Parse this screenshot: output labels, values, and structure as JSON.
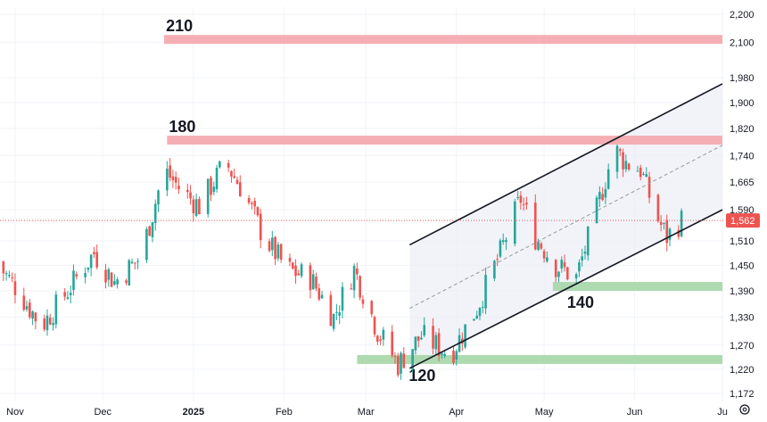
{
  "chart_data": {
    "type": "candlestick",
    "price_axis": {
      "ticks": [
        2200,
        2100,
        1980,
        1900,
        1820,
        1740,
        1665,
        1590,
        1510,
        1450,
        1390,
        1330,
        1270,
        1220,
        1172
      ],
      "tick_labels": [
        "2,200",
        "2,100",
        "1,980",
        "1,900",
        "1,820",
        "1,740",
        "1,665",
        "1,590",
        "1,510",
        "1,450",
        "1,390",
        "1,330",
        "1,270",
        "1,220",
        "1,172"
      ],
      "scale": "log",
      "range": [
        1160,
        2240
      ]
    },
    "time_axis": {
      "labels": [
        {
          "text": "Nov",
          "date": "2024-11-01"
        },
        {
          "text": "Dec",
          "date": "2024-12-01"
        },
        {
          "text": "2025",
          "date": "2025-01-01",
          "bold": true
        },
        {
          "text": "Feb",
          "date": "2025-02-01"
        },
        {
          "text": "Mar",
          "date": "2025-03-01"
        },
        {
          "text": "Apr",
          "date": "2025-04-01"
        },
        {
          "text": "May",
          "date": "2025-05-01"
        },
        {
          "text": "Jun",
          "date": "2025-06-01"
        },
        {
          "text": "Ju",
          "date": "2025-07-01"
        }
      ],
      "range": [
        "2024-10-25",
        "2025-07-01"
      ]
    },
    "last_price": {
      "value": 1562,
      "label": "1,562"
    },
    "colors": {
      "up": "#26a69a",
      "down": "#ef5350",
      "channel": "#131722",
      "resistance": "#f4a6ac",
      "support": "#a5d6a7",
      "price_line": "#ef5350",
      "channel_fill": "#eceff6"
    },
    "grid": true,
    "levels": [
      {
        "label": "210",
        "kind": "resistance",
        "price": 2110,
        "from": "2024-12-22",
        "to": "2025-07-01"
      },
      {
        "label": "180",
        "kind": "resistance",
        "price": 1785,
        "from": "2024-12-23",
        "to": "2025-07-01"
      },
      {
        "label": "140",
        "kind": "support",
        "price": 1400,
        "from": "2025-05-04",
        "to": "2025-07-01"
      },
      {
        "label": "120",
        "kind": "support",
        "price": 1240,
        "from": "2025-02-26",
        "to": "2025-07-01"
      }
    ],
    "channel": {
      "upper": [
        {
          "date": "2025-03-16",
          "price": 1500
        },
        {
          "date": "2025-07-01",
          "price": 1960
        }
      ],
      "middle": [
        {
          "date": "2025-03-16",
          "price": 1350
        },
        {
          "date": "2025-07-01",
          "price": 1770
        }
      ],
      "lower": [
        {
          "date": "2025-03-16",
          "price": 1222
        },
        {
          "date": "2025-07-01",
          "price": 1590
        }
      ]
    },
    "anchors": [
      {
        "date": "2024-10-25",
        "price": 1460
      },
      {
        "date": "2024-11-01",
        "price": 1400
      },
      {
        "date": "2024-11-10",
        "price": 1310
      },
      {
        "date": "2024-11-18",
        "price": 1380
      },
      {
        "date": "2024-11-28",
        "price": 1480
      },
      {
        "date": "2024-12-05",
        "price": 1410
      },
      {
        "date": "2024-12-14",
        "price": 1470
      },
      {
        "date": "2024-12-18",
        "price": 1580
      },
      {
        "date": "2024-12-22",
        "price": 1700
      },
      {
        "date": "2024-12-28",
        "price": 1640
      },
      {
        "date": "2025-01-03",
        "price": 1600
      },
      {
        "date": "2025-01-12",
        "price": 1720
      },
      {
        "date": "2025-01-18",
        "price": 1640
      },
      {
        "date": "2025-01-25",
        "price": 1520
      },
      {
        "date": "2025-02-02",
        "price": 1440
      },
      {
        "date": "2025-02-10",
        "price": 1420
      },
      {
        "date": "2025-02-18",
        "price": 1330
      },
      {
        "date": "2025-02-25",
        "price": 1440
      },
      {
        "date": "2025-03-05",
        "price": 1300
      },
      {
        "date": "2025-03-12",
        "price": 1230
      },
      {
        "date": "2025-03-20",
        "price": 1290
      },
      {
        "date": "2025-03-30",
        "price": 1250
      },
      {
        "date": "2025-04-08",
        "price": 1350
      },
      {
        "date": "2025-04-16",
        "price": 1480
      },
      {
        "date": "2025-04-23",
        "price": 1620
      },
      {
        "date": "2025-04-28",
        "price": 1520
      },
      {
        "date": "2025-05-05",
        "price": 1450
      },
      {
        "date": "2025-05-12",
        "price": 1420
      },
      {
        "date": "2025-05-18",
        "price": 1560
      },
      {
        "date": "2025-05-25",
        "price": 1760
      },
      {
        "date": "2025-05-29",
        "price": 1720
      },
      {
        "date": "2025-06-03",
        "price": 1700
      },
      {
        "date": "2025-06-08",
        "price": 1580
      },
      {
        "date": "2025-06-12",
        "price": 1520
      },
      {
        "date": "2025-06-17",
        "price": 1562
      }
    ]
  }
}
